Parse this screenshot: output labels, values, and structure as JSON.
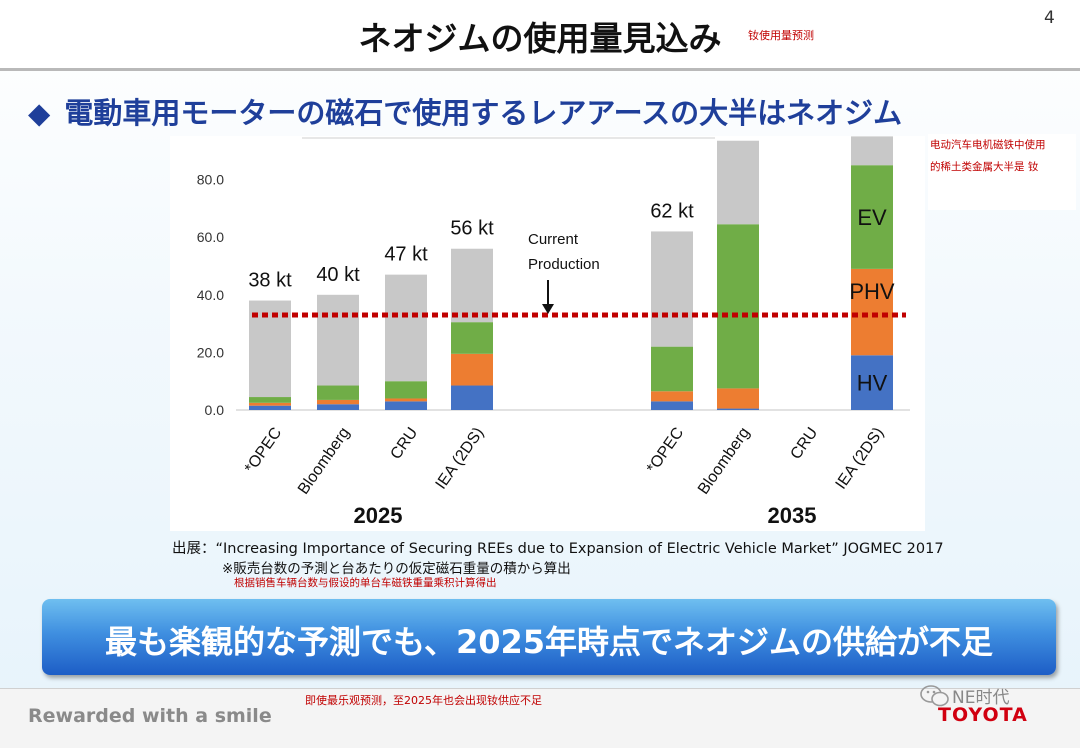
{
  "page": {
    "title": "ネオジムの使用量見込み",
    "title_cn": "钕使用量预测",
    "page_number": "4",
    "headline_bullet": "◆",
    "headline": "電動車用モーターの磁石で使用するレアアースの大半はネオジム",
    "note_cn_line1": "电动汽车电机磁铁中使用",
    "note_cn_line2": "的稀土类金属大半是 钕",
    "source_line1": "出展：“Increasing Importance of Securing REEs due to Expansion of Electric Vehicle Market” JOGMEC  2017",
    "source_line2": "※販売台数の予測と台あたりの仮定磁石重量の積から算出",
    "source_cn": "根据销售车辆台数与假设的单台车磁铁重量乘积计算得出",
    "banner": "最も楽観的な予測でも、2025年時点でネオジムの供給が不足",
    "footer_cn": "即使最乐观预测，至2025年也会出现钕供应不足",
    "tagline": "Rewarded with a smile",
    "watermark": "NE时代",
    "logo": "TOYOTA"
  },
  "colors": {
    "hv": "#4472c4",
    "phv": "#ed7d31",
    "ev": "#70ad47",
    "other": "#c8c8c8",
    "current_production": "#c00000",
    "headline": "#1f3f9a",
    "banner": "#3f8fe0"
  },
  "chart_data": {
    "type": "bar",
    "stacked": true,
    "ylim": [
      0,
      95
    ],
    "yticks": [
      "0.0",
      "20.0",
      "40.0",
      "60.0",
      "80.0"
    ],
    "ytick_values": [
      0,
      20,
      40,
      60,
      80
    ],
    "groups": [
      "2025",
      "2035"
    ],
    "categories": [
      "*OPEC",
      "Bloomberg",
      "CRU",
      "IEA (2DS)",
      "*OPEC",
      "Bloomberg",
      "CRU",
      "IEA (2DS)"
    ],
    "category_groups": [
      "2025",
      "2025",
      "2025",
      "2025",
      "2035",
      "2035",
      "2035",
      "2035"
    ],
    "series": [
      {
        "name": "HV",
        "values": [
          1.5,
          2,
          3,
          8.5,
          3,
          0.5,
          0,
          19
        ]
      },
      {
        "name": "PHV",
        "values": [
          1,
          1.5,
          1,
          11,
          3.5,
          7,
          0,
          30
        ]
      },
      {
        "name": "EV",
        "values": [
          2,
          5,
          6,
          11,
          15.5,
          57,
          0,
          36
        ]
      },
      {
        "name": "",
        "values": [
          33.5,
          31.5,
          37,
          25.5,
          40,
          29,
          0,
          10
        ]
      }
    ],
    "totals": [
      38,
      40,
      47,
      56,
      62,
      93.5,
      0,
      95
    ],
    "total_labels": [
      "38 kt",
      "40 kt",
      "47 kt",
      "56 kt",
      "62 kt",
      "",
      "",
      ""
    ],
    "current_production": 33,
    "annotation": [
      "Current",
      "Production"
    ]
  }
}
